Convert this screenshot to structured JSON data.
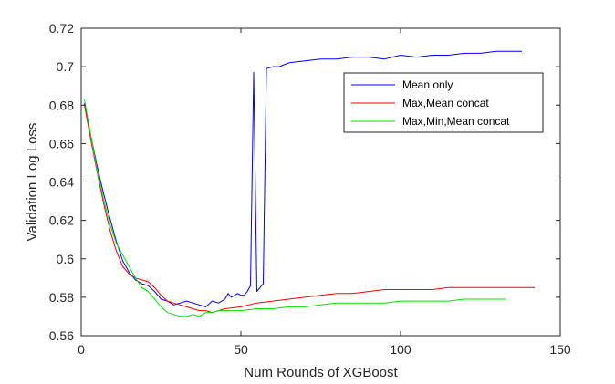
{
  "chart_data": {
    "type": "line",
    "title": "",
    "xlabel": "Num Rounds of XGBoost",
    "ylabel": "Validation Log Loss",
    "xlim": [
      0,
      150
    ],
    "ylim": [
      0.56,
      0.72
    ],
    "xticks": [
      0,
      50,
      100,
      150
    ],
    "xtick_labels": [
      "0",
      "50",
      "100",
      "150"
    ],
    "yticks": [
      0.56,
      0.58,
      0.6,
      0.62,
      0.64,
      0.66,
      0.68,
      0.7,
      0.72
    ],
    "ytick_labels": [
      "0.56",
      "0.58",
      "0.6",
      "0.62",
      "0.64",
      "0.66",
      "0.68",
      "0.7",
      "0.72"
    ],
    "grid": false,
    "legend_position": "top-right",
    "series": [
      {
        "name": "Mean only",
        "color": "#0000ff",
        "x": [
          1,
          3,
          5,
          7,
          9,
          11,
          13,
          15,
          17,
          19,
          21,
          23,
          25,
          27,
          29,
          31,
          33,
          35,
          37,
          39,
          41,
          43,
          45,
          46,
          47,
          48,
          49,
          50,
          51,
          52,
          53,
          54,
          55,
          56,
          57,
          58,
          60,
          62,
          65,
          70,
          75,
          80,
          85,
          90,
          95,
          100,
          105,
          110,
          115,
          120,
          125,
          130,
          135,
          138
        ],
        "values": [
          0.681,
          0.664,
          0.648,
          0.634,
          0.621,
          0.609,
          0.599,
          0.593,
          0.589,
          0.587,
          0.586,
          0.583,
          0.579,
          0.578,
          0.576,
          0.577,
          0.578,
          0.577,
          0.576,
          0.575,
          0.578,
          0.577,
          0.579,
          0.582,
          0.58,
          0.581,
          0.582,
          0.581,
          0.581,
          0.583,
          0.586,
          0.697,
          0.583,
          0.585,
          0.587,
          0.699,
          0.7,
          0.7,
          0.702,
          0.703,
          0.704,
          0.704,
          0.705,
          0.705,
          0.704,
          0.706,
          0.705,
          0.706,
          0.706,
          0.707,
          0.707,
          0.708,
          0.708,
          0.708
        ]
      },
      {
        "name": "Max,Mean concat",
        "color": "#ff0000",
        "x": [
          1,
          3,
          5,
          7,
          9,
          11,
          13,
          15,
          17,
          19,
          21,
          23,
          25,
          27,
          29,
          31,
          33,
          35,
          37,
          39,
          41,
          43,
          45,
          50,
          55,
          60,
          65,
          70,
          75,
          80,
          85,
          90,
          95,
          100,
          105,
          110,
          115,
          120,
          125,
          130,
          135,
          142
        ],
        "values": [
          0.68,
          0.662,
          0.645,
          0.629,
          0.615,
          0.604,
          0.596,
          0.592,
          0.59,
          0.589,
          0.588,
          0.585,
          0.581,
          0.578,
          0.577,
          0.576,
          0.575,
          0.574,
          0.573,
          0.573,
          0.572,
          0.573,
          0.574,
          0.575,
          0.577,
          0.578,
          0.579,
          0.58,
          0.581,
          0.582,
          0.582,
          0.583,
          0.584,
          0.584,
          0.584,
          0.584,
          0.585,
          0.585,
          0.585,
          0.585,
          0.585,
          0.585
        ]
      },
      {
        "name": "Max,Min,Mean concat",
        "color": "#00e600",
        "x": [
          1,
          3,
          5,
          7,
          9,
          11,
          13,
          15,
          17,
          19,
          21,
          23,
          25,
          27,
          29,
          31,
          33,
          35,
          37,
          39,
          41,
          43,
          45,
          50,
          55,
          60,
          65,
          70,
          75,
          80,
          85,
          90,
          95,
          100,
          105,
          110,
          115,
          120,
          125,
          130,
          133
        ],
        "values": [
          0.683,
          0.664,
          0.646,
          0.631,
          0.618,
          0.608,
          0.602,
          0.596,
          0.59,
          0.585,
          0.583,
          0.579,
          0.575,
          0.572,
          0.571,
          0.57,
          0.57,
          0.571,
          0.57,
          0.572,
          0.572,
          0.573,
          0.573,
          0.573,
          0.574,
          0.574,
          0.575,
          0.575,
          0.576,
          0.577,
          0.577,
          0.577,
          0.577,
          0.578,
          0.578,
          0.578,
          0.578,
          0.579,
          0.579,
          0.579,
          0.579
        ]
      }
    ]
  }
}
